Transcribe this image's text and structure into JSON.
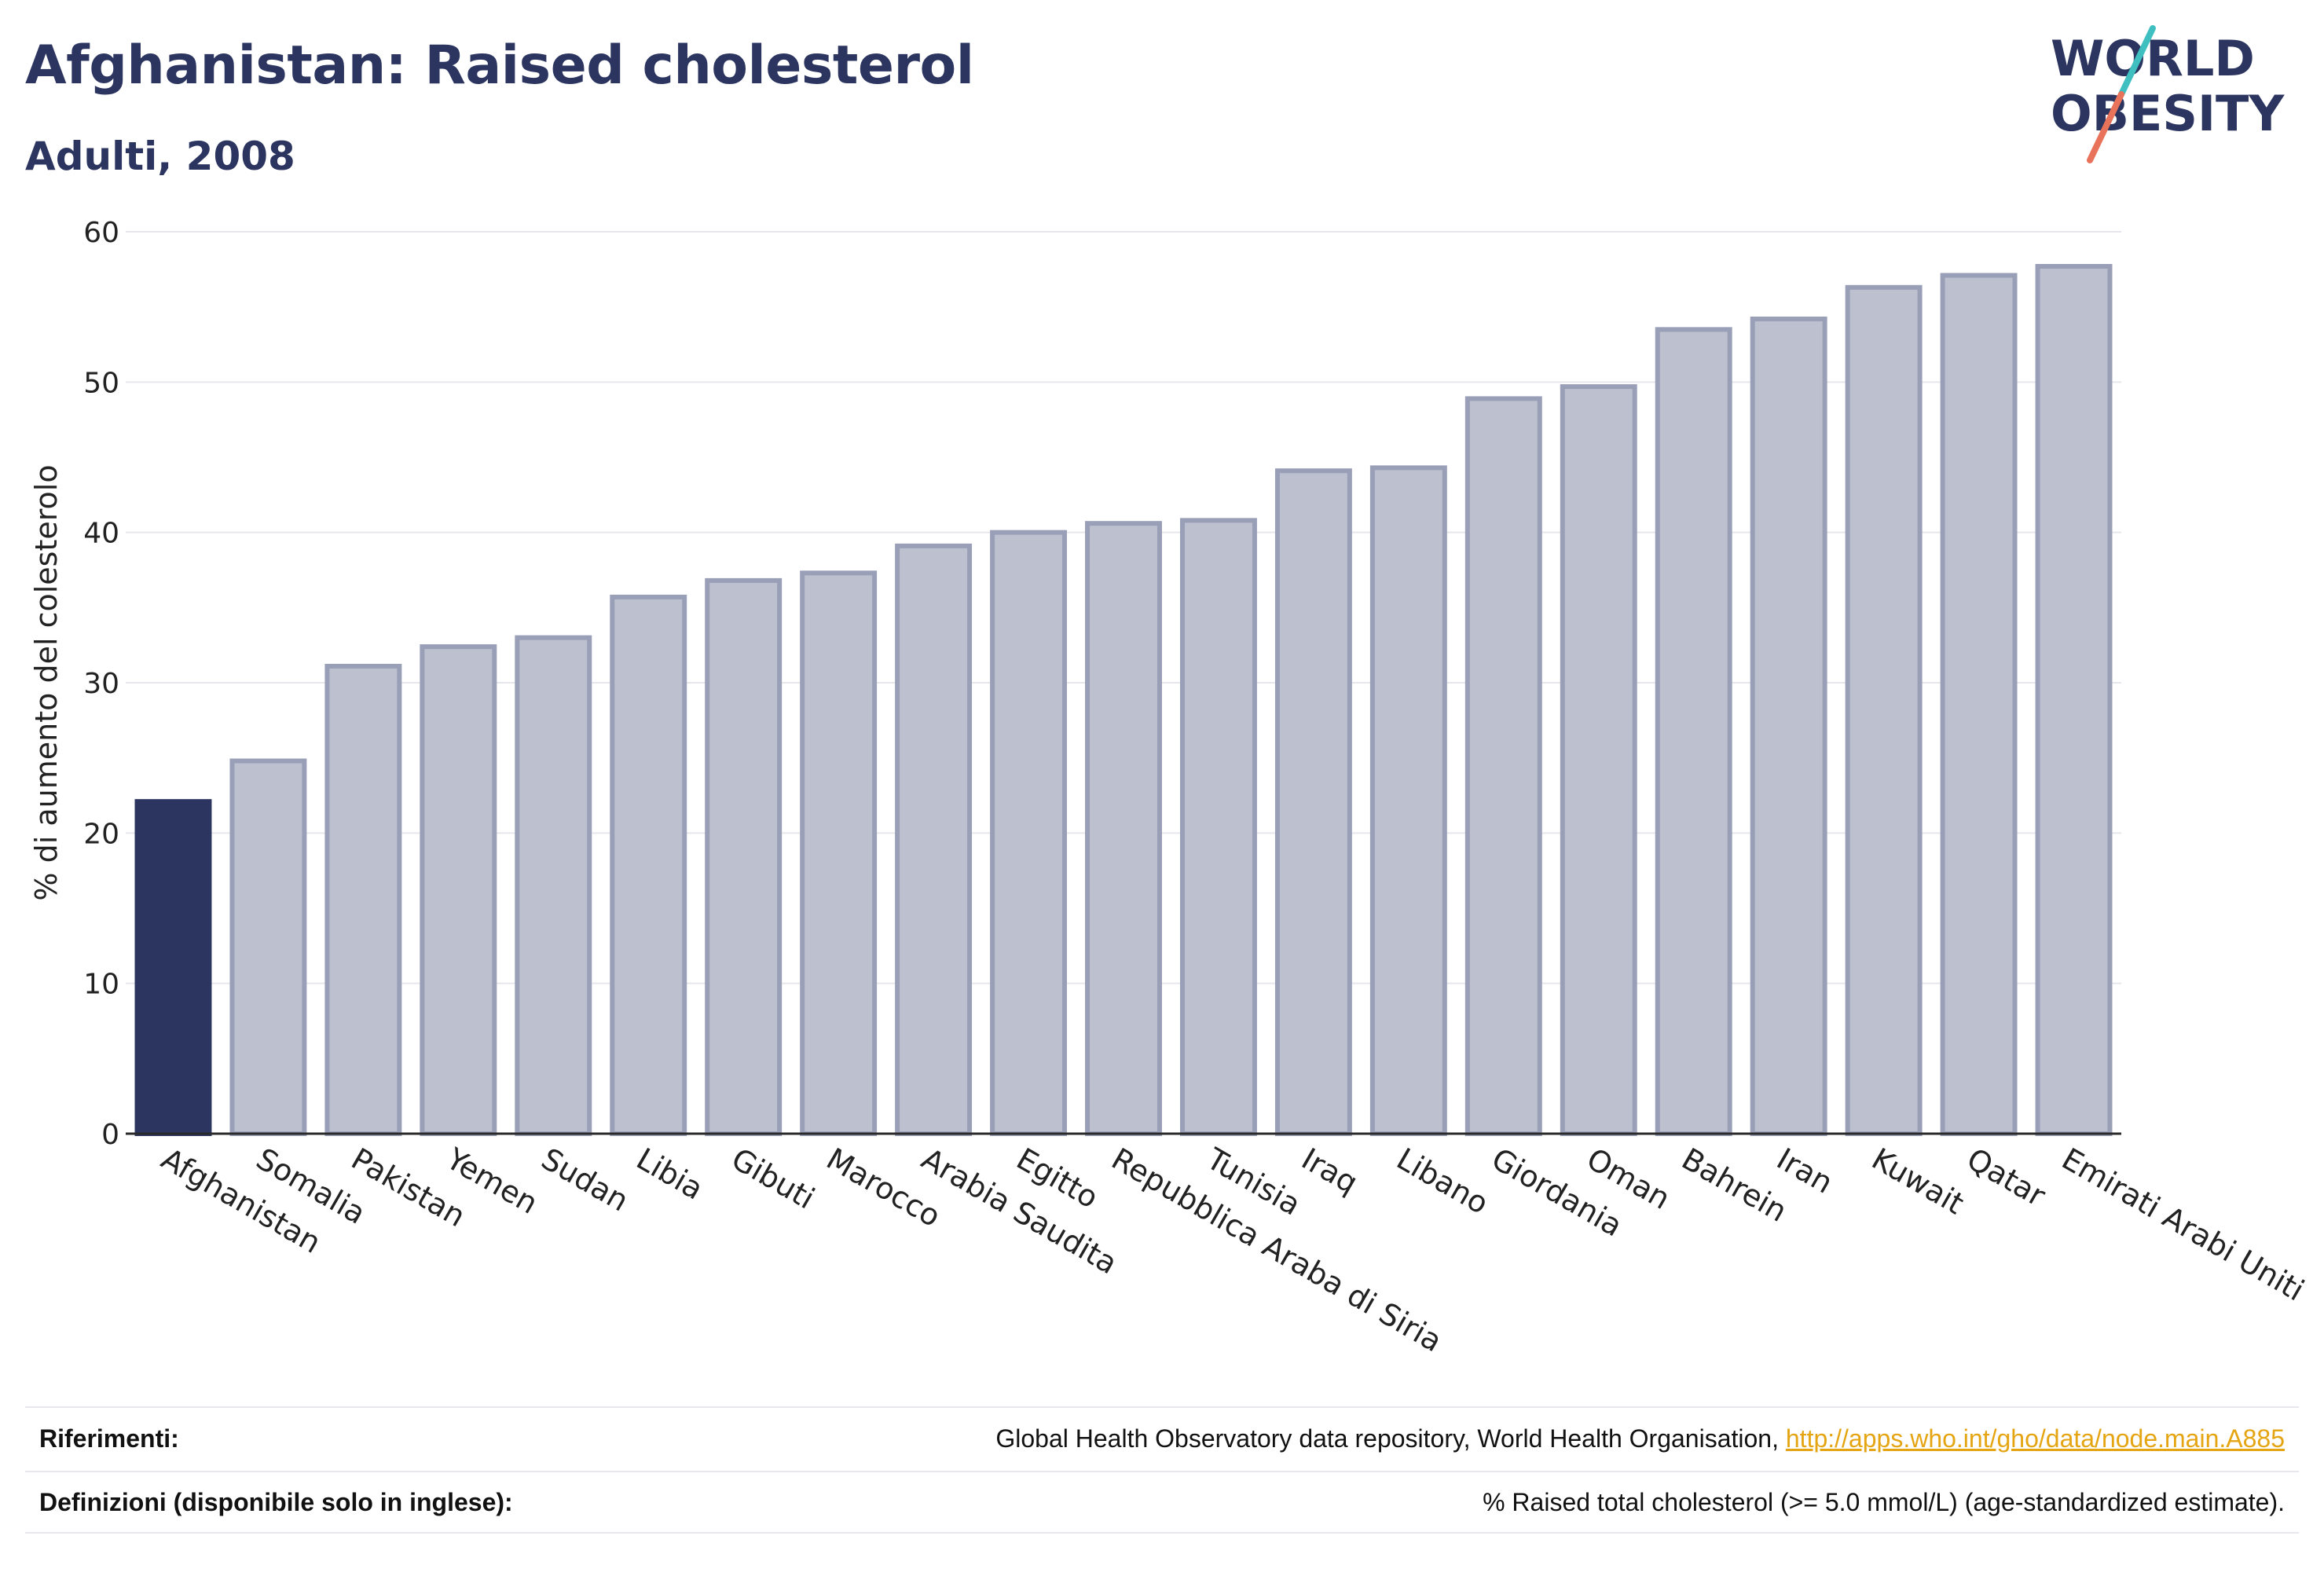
{
  "header": {
    "title": "Afghanistan: Raised cholesterol",
    "subtitle": "Adulti, 2008"
  },
  "logo": {
    "line1": "WORLD",
    "line2": "OBESITY"
  },
  "colors": {
    "highlight": "#2b3560",
    "bar_fill": "#bdc0ce",
    "bar_stroke": "#9a9fb8",
    "accent_teal": "#3fbfbf",
    "accent_coral": "#e8735a",
    "link": "#e5a513"
  },
  "chart_data": {
    "type": "bar",
    "ylabel": "% di aumento del colesterolo",
    "ylim": [
      0,
      60
    ],
    "yticks": [
      0,
      10,
      20,
      30,
      40,
      50,
      60
    ],
    "grid": true,
    "highlight_category": "Afghanistan",
    "categories": [
      "Afghanistan",
      "Somalia",
      "Pakistan",
      "Yemen",
      "Sudan",
      "Libia",
      "Gibuti",
      "Marocco",
      "Arabia Saudita",
      "Egitto",
      "Repubblica Araba di Siria",
      "Tunisia",
      "Iraq",
      "Libano",
      "Giordania",
      "Oman",
      "Bahrein",
      "Iran",
      "Kuwait",
      "Qatar",
      "Emirati Arabi Uniti"
    ],
    "values": [
      22.1,
      24.8,
      31.1,
      32.4,
      33.0,
      35.7,
      36.8,
      37.3,
      39.1,
      40.0,
      40.6,
      40.8,
      44.1,
      44.3,
      48.9,
      49.7,
      53.5,
      54.2,
      56.3,
      57.1,
      57.7
    ]
  },
  "references": {
    "refs_label": "Riferimenti:",
    "refs_text": "Global Health Observatory data repository, World Health Organisation, ",
    "refs_link": "http://apps.who.int/gho/data/node.main.A885",
    "defs_label": "Definizioni (disponibile solo in inglese):",
    "defs_text": "% Raised total cholesterol (>= 5.0 mmol/L) (age-standardized estimate)."
  }
}
